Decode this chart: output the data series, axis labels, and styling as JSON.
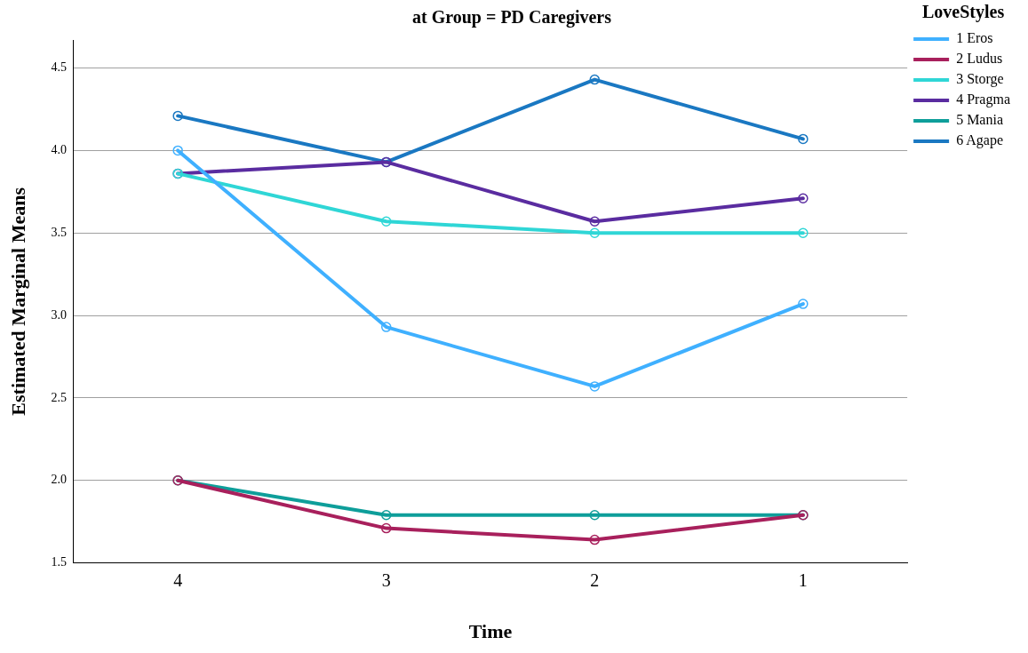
{
  "chart_data": {
    "type": "line",
    "title": "at Group = PD Caregivers",
    "xlabel": "Time",
    "ylabel": "Estimated Marginal Means",
    "legend_title": "LoveStyles",
    "categories": [
      "4",
      "3",
      "2",
      "1"
    ],
    "series": [
      {
        "name": "1 Eros",
        "color": "#3fb0ff",
        "values": [
          4.0,
          2.93,
          2.57,
          3.07
        ]
      },
      {
        "name": "2 Ludus",
        "color": "#a8205c",
        "values": [
          2.0,
          1.71,
          1.64,
          1.79
        ]
      },
      {
        "name": "3 Storge",
        "color": "#2fd6d6",
        "values": [
          3.86,
          3.57,
          3.5,
          3.5
        ]
      },
      {
        "name": "4 Pragma",
        "color": "#5a2ca0",
        "values": [
          3.86,
          3.93,
          3.57,
          3.71
        ]
      },
      {
        "name": "5 Mania",
        "color": "#0e9e9a",
        "values": [
          2.0,
          1.79,
          1.79,
          1.79
        ]
      },
      {
        "name": "6 Agape",
        "color": "#1a78c2",
        "values": [
          4.21,
          3.93,
          4.43,
          4.07
        ]
      }
    ],
    "ylim": [
      1.5,
      4.67
    ],
    "yticks": [
      1.5,
      {
        "value": 2,
        "label": "2.0"
      },
      2.5,
      {
        "value": 3,
        "label": "3.0"
      },
      3.5,
      {
        "value": 4,
        "label": "4.0"
      },
      4.5
    ],
    "grid": "y",
    "legend": "top right",
    "marker": "circle",
    "line_style": "solid"
  }
}
